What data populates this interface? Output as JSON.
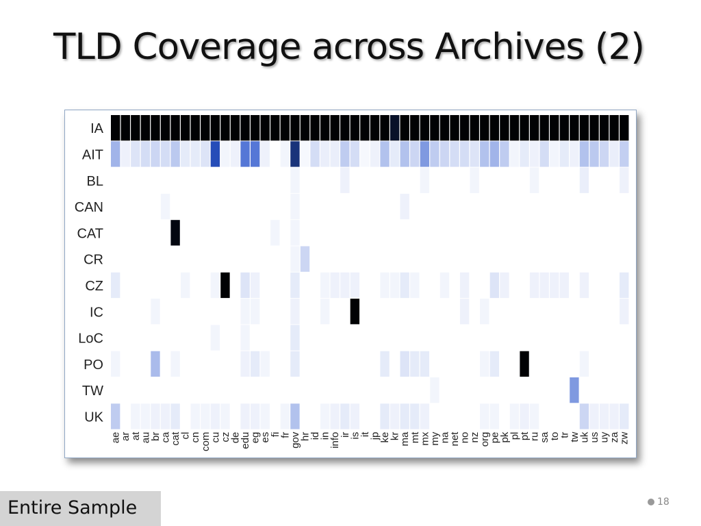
{
  "slide": {
    "title": "TLD Coverage across Archives (2)",
    "caption": "Entire Sample",
    "page_number": "18"
  },
  "colors": {
    "heat_low": "#ffffff",
    "heat_mid": "#2a55cc",
    "heat_high": "#000000",
    "frame_border": "#8fa6c4",
    "caption_bg": "#d4d4d4"
  },
  "chart_data": {
    "type": "heatmap",
    "title": "",
    "xlabel": "",
    "ylabel": "",
    "rows": [
      "IA",
      "AIT",
      "BL",
      "CAN",
      "CAT",
      "CR",
      "CZ",
      "IC",
      "LoC",
      "PO",
      "TW",
      "UK"
    ],
    "columns": [
      "ae",
      "ar",
      "at",
      "au",
      "br",
      "ca",
      "cat",
      "cl",
      "cn",
      "com",
      "cu",
      "cz",
      "de",
      "edu",
      "eg",
      "es",
      "fi",
      "fr",
      "gov",
      "hr",
      "id",
      "in",
      "info",
      "ir",
      "is",
      "it",
      "jp",
      "ke",
      "kr",
      "ma",
      "mt",
      "mx",
      "my",
      "na",
      "net",
      "no",
      "nz",
      "org",
      "pe",
      "pk",
      "pl",
      "pt",
      "ru",
      "sa",
      "to",
      "tr",
      "tw",
      "uk",
      "us",
      "uy",
      "za",
      "zw"
    ],
    "value_range": [
      0,
      1
    ],
    "values": [
      [
        0.99,
        0.99,
        0.99,
        0.99,
        0.99,
        0.99,
        0.99,
        0.99,
        0.99,
        0.99,
        0.99,
        0.99,
        0.99,
        0.99,
        0.99,
        0.99,
        0.99,
        0.99,
        0.99,
        0.99,
        0.99,
        0.99,
        0.99,
        0.99,
        0.99,
        0.99,
        0.99,
        0.99,
        0.9,
        0.99,
        0.99,
        0.99,
        0.99,
        0.99,
        0.99,
        0.99,
        0.99,
        0.99,
        0.99,
        0.99,
        0.99,
        0.99,
        0.99,
        0.99,
        0.99,
        0.99,
        0.99,
        0.99,
        0.99,
        0.99,
        0.99,
        0.99
      ],
      [
        0.22,
        0.04,
        0.08,
        0.1,
        0.12,
        0.1,
        0.16,
        0.06,
        0.06,
        0.08,
        0.55,
        0.03,
        0.04,
        0.4,
        0.4,
        0.04,
        0.0,
        0.03,
        0.7,
        0.02,
        0.1,
        0.05,
        0.05,
        0.15,
        0.1,
        0.02,
        0.04,
        0.18,
        0.06,
        0.18,
        0.12,
        0.3,
        0.15,
        0.12,
        0.1,
        0.1,
        0.08,
        0.18,
        0.22,
        0.15,
        0.03,
        0.06,
        0.04,
        0.1,
        0.03,
        0.06,
        0.04,
        0.18,
        0.16,
        0.12,
        0.05,
        0.14
      ],
      [
        0.0,
        0.0,
        0.0,
        0.0,
        0.0,
        0.0,
        0.0,
        0.0,
        0.0,
        0.0,
        0.0,
        0.0,
        0.0,
        0.0,
        0.0,
        0.0,
        0.0,
        0.0,
        0.03,
        0.0,
        0.0,
        0.0,
        0.0,
        0.04,
        0.0,
        0.0,
        0.0,
        0.0,
        0.0,
        0.0,
        0.0,
        0.03,
        0.0,
        0.0,
        0.0,
        0.0,
        0.03,
        0.0,
        0.0,
        0.0,
        0.0,
        0.0,
        0.03,
        0.0,
        0.0,
        0.0,
        0.0,
        0.05,
        0.0,
        0.0,
        0.0,
        0.04
      ],
      [
        0.0,
        0.0,
        0.0,
        0.0,
        0.0,
        0.03,
        0.0,
        0.0,
        0.0,
        0.0,
        0.0,
        0.0,
        0.0,
        0.0,
        0.0,
        0.0,
        0.0,
        0.0,
        0.03,
        0.0,
        0.0,
        0.0,
        0.0,
        0.0,
        0.0,
        0.0,
        0.0,
        0.0,
        0.0,
        0.04,
        0.0,
        0.0,
        0.0,
        0.0,
        0.0,
        0.0,
        0.0,
        0.0,
        0.0,
        0.0,
        0.0,
        0.0,
        0.0,
        0.0,
        0.0,
        0.0,
        0.0,
        0.0,
        0.0,
        0.0,
        0.0,
        0.0
      ],
      [
        0.0,
        0.0,
        0.0,
        0.0,
        0.0,
        0.0,
        0.96,
        0.0,
        0.0,
        0.0,
        0.0,
        0.0,
        0.0,
        0.0,
        0.0,
        0.0,
        0.03,
        0.0,
        0.03,
        0.0,
        0.0,
        0.0,
        0.0,
        0.0,
        0.0,
        0.0,
        0.0,
        0.0,
        0.0,
        0.0,
        0.0,
        0.0,
        0.0,
        0.0,
        0.0,
        0.0,
        0.0,
        0.0,
        0.0,
        0.0,
        0.0,
        0.0,
        0.0,
        0.0,
        0.0,
        0.0,
        0.0,
        0.0,
        0.0,
        0.0,
        0.0,
        0.0
      ],
      [
        0.0,
        0.0,
        0.0,
        0.0,
        0.0,
        0.0,
        0.0,
        0.0,
        0.0,
        0.0,
        0.0,
        0.0,
        0.0,
        0.0,
        0.0,
        0.0,
        0.0,
        0.0,
        0.03,
        0.12,
        0.0,
        0.0,
        0.0,
        0.0,
        0.0,
        0.0,
        0.0,
        0.0,
        0.0,
        0.0,
        0.0,
        0.0,
        0.0,
        0.0,
        0.0,
        0.0,
        0.0,
        0.0,
        0.0,
        0.0,
        0.0,
        0.0,
        0.0,
        0.0,
        0.0,
        0.0,
        0.0,
        0.0,
        0.0,
        0.0,
        0.0,
        0.0
      ],
      [
        0.06,
        0.0,
        0.0,
        0.0,
        0.0,
        0.0,
        0.0,
        0.03,
        0.0,
        0.0,
        0.03,
        0.99,
        0.0,
        0.08,
        0.04,
        0.0,
        0.0,
        0.0,
        0.06,
        0.0,
        0.0,
        0.03,
        0.04,
        0.04,
        0.04,
        0.0,
        0.0,
        0.03,
        0.03,
        0.06,
        0.03,
        0.0,
        0.0,
        0.03,
        0.0,
        0.04,
        0.0,
        0.0,
        0.08,
        0.04,
        0.0,
        0.0,
        0.04,
        0.04,
        0.04,
        0.04,
        0.0,
        0.04,
        0.0,
        0.0,
        0.0,
        0.06
      ],
      [
        0.0,
        0.0,
        0.0,
        0.0,
        0.03,
        0.0,
        0.0,
        0.0,
        0.0,
        0.0,
        0.0,
        0.0,
        0.0,
        0.03,
        0.03,
        0.0,
        0.0,
        0.0,
        0.04,
        0.0,
        0.0,
        0.03,
        0.0,
        0.0,
        0.99,
        0.0,
        0.0,
        0.0,
        0.0,
        0.0,
        0.0,
        0.0,
        0.0,
        0.0,
        0.0,
        0.04,
        0.0,
        0.03,
        0.0,
        0.0,
        0.0,
        0.0,
        0.0,
        0.0,
        0.0,
        0.0,
        0.0,
        0.0,
        0.0,
        0.0,
        0.0,
        0.04
      ],
      [
        0.0,
        0.0,
        0.0,
        0.0,
        0.0,
        0.0,
        0.0,
        0.0,
        0.0,
        0.0,
        0.03,
        0.0,
        0.0,
        0.03,
        0.0,
        0.0,
        0.0,
        0.0,
        0.06,
        0.0,
        0.0,
        0.0,
        0.0,
        0.0,
        0.0,
        0.0,
        0.0,
        0.0,
        0.0,
        0.0,
        0.0,
        0.0,
        0.0,
        0.0,
        0.0,
        0.0,
        0.0,
        0.0,
        0.0,
        0.0,
        0.0,
        0.0,
        0.0,
        0.0,
        0.0,
        0.0,
        0.0,
        0.0,
        0.0,
        0.0,
        0.0,
        0.0
      ],
      [
        0.03,
        0.0,
        0.0,
        0.0,
        0.2,
        0.0,
        0.03,
        0.0,
        0.0,
        0.0,
        0.0,
        0.0,
        0.0,
        0.04,
        0.06,
        0.03,
        0.0,
        0.0,
        0.06,
        0.0,
        0.0,
        0.0,
        0.0,
        0.0,
        0.0,
        0.0,
        0.0,
        0.06,
        0.0,
        0.08,
        0.06,
        0.06,
        0.0,
        0.0,
        0.0,
        0.0,
        0.0,
        0.03,
        0.06,
        0.0,
        0.0,
        0.99,
        0.0,
        0.0,
        0.0,
        0.0,
        0.0,
        0.03,
        0.0,
        0.0,
        0.0,
        0.0
      ],
      [
        0.0,
        0.0,
        0.0,
        0.0,
        0.0,
        0.0,
        0.0,
        0.0,
        0.0,
        0.0,
        0.0,
        0.0,
        0.0,
        0.0,
        0.0,
        0.0,
        0.0,
        0.0,
        0.0,
        0.0,
        0.0,
        0.0,
        0.0,
        0.0,
        0.0,
        0.0,
        0.0,
        0.0,
        0.0,
        0.0,
        0.0,
        0.0,
        0.03,
        0.0,
        0.0,
        0.0,
        0.0,
        0.0,
        0.0,
        0.0,
        0.0,
        0.0,
        0.0,
        0.0,
        0.0,
        0.0,
        0.3,
        0.0,
        0.0,
        0.0,
        0.0,
        0.0
      ],
      [
        0.15,
        0.0,
        0.03,
        0.03,
        0.04,
        0.04,
        0.06,
        0.0,
        0.03,
        0.03,
        0.04,
        0.03,
        0.0,
        0.04,
        0.04,
        0.03,
        0.0,
        0.03,
        0.18,
        0.0,
        0.0,
        0.03,
        0.04,
        0.06,
        0.04,
        0.0,
        0.0,
        0.06,
        0.04,
        0.06,
        0.06,
        0.04,
        0.0,
        0.0,
        0.0,
        0.0,
        0.0,
        0.03,
        0.03,
        0.0,
        0.03,
        0.04,
        0.03,
        0.0,
        0.0,
        0.0,
        0.0,
        0.12,
        0.04,
        0.04,
        0.04,
        0.06
      ]
    ]
  }
}
